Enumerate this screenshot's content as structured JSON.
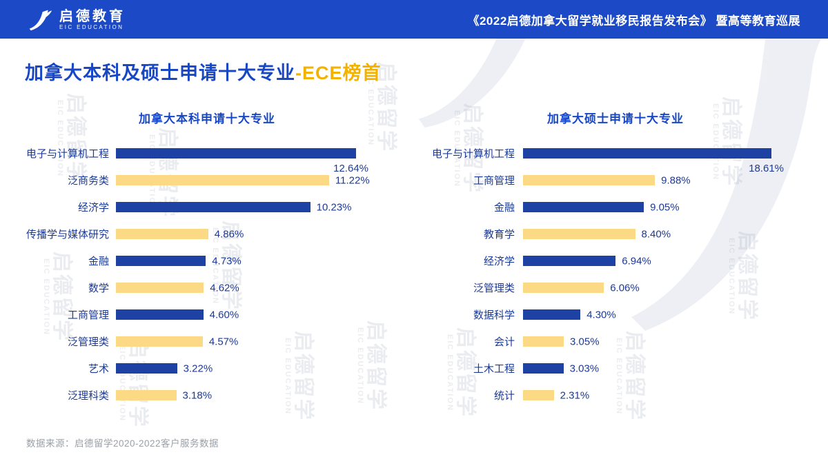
{
  "header": {
    "brand": {
      "name": "启德教育",
      "subtitle": "EIC EDUCATION",
      "logo_icon": "eic-swoosh-icon"
    },
    "title": "《2022启德加拿大留学就业移民报告发布会》 暨高等教育巡展"
  },
  "page": {
    "title_main": "加拿大本科及硕士申请十大专业",
    "title_accent": "-ECE榜首",
    "source": "数据来源：启德留学2020-2022客户服务数据",
    "watermark": {
      "cn": "启德留学",
      "en": "EIC EDUCATION"
    }
  },
  "colors": {
    "header_bg": "#1c49c6",
    "bar_blue": "#1e41a4",
    "bar_yellow": "#fbd985",
    "accent_gold": "#f3b200",
    "title_blue": "#1747c5",
    "label_navy": "#1b3a96",
    "source_gray": "#9aa0a8",
    "watermark_gray": "#7a86a0"
  },
  "chart_data": [
    {
      "type": "bar",
      "orientation": "horizontal",
      "title": "加拿大本科申请十大专业",
      "categories": [
        "电子与计算机工程",
        "泛商务类",
        "经济学",
        "传播学与媒体研究",
        "金融",
        "数学",
        "工商管理",
        "泛管理类",
        "艺术",
        "泛理科类"
      ],
      "values": [
        12.64,
        11.22,
        10.23,
        4.86,
        4.73,
        4.62,
        4.6,
        4.57,
        3.22,
        3.18
      ],
      "value_labels": [
        "12.64%",
        "11.22%",
        "10.23%",
        "4.86%",
        "4.73%",
        "4.62%",
        "4.60%",
        "4.57%",
        "3.22%",
        "3.18%"
      ],
      "xlim": [
        0,
        12.64
      ],
      "xlabel": "",
      "ylabel": "",
      "grid": false,
      "legend": false,
      "bar_colors_alternate": [
        "#1e41a4",
        "#fbd985"
      ]
    },
    {
      "type": "bar",
      "orientation": "horizontal",
      "title": "加拿大硕士申请十大专业",
      "categories": [
        "电子与计算机工程",
        "工商管理",
        "金融",
        "教育学",
        "经济学",
        "泛管理类",
        "数据科学",
        "会计",
        "土木工程",
        "统计"
      ],
      "values": [
        18.61,
        9.88,
        9.05,
        8.4,
        6.94,
        6.06,
        4.3,
        3.05,
        3.03,
        2.31
      ],
      "value_labels": [
        "18.61%",
        "9.88%",
        "9.05%",
        "8.40%",
        "6.94%",
        "6.06%",
        "4.30%",
        "3.05%",
        "3.03%",
        "2.31%"
      ],
      "xlim": [
        0,
        18.61
      ],
      "xlabel": "",
      "ylabel": "",
      "grid": false,
      "legend": false,
      "bar_colors_alternate": [
        "#1e41a4",
        "#fbd985"
      ]
    }
  ]
}
